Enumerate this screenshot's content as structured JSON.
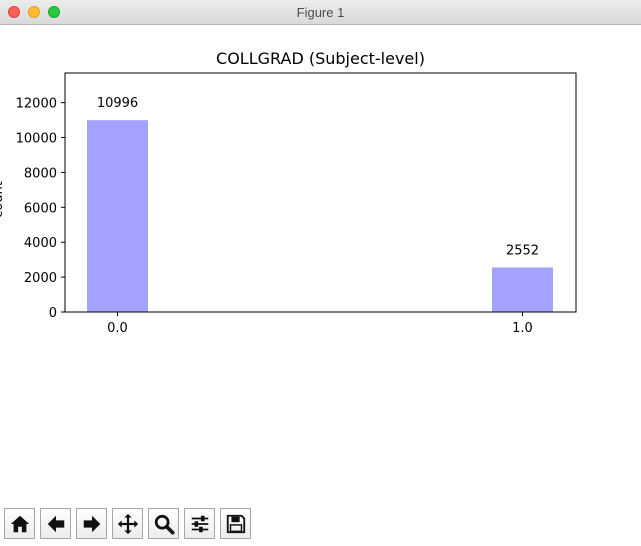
{
  "window": {
    "title": "Figure 1"
  },
  "toolbar": {
    "buttons": [
      {
        "name": "home",
        "icon": "home-icon"
      },
      {
        "name": "back",
        "icon": "arrow-left-icon"
      },
      {
        "name": "forward",
        "icon": "arrow-right-icon"
      },
      {
        "name": "pan",
        "icon": "move-icon"
      },
      {
        "name": "zoom",
        "icon": "magnifier-icon"
      },
      {
        "name": "configure-subplots",
        "icon": "sliders-icon"
      },
      {
        "name": "save",
        "icon": "floppy-disk-icon"
      }
    ]
  },
  "chart_data": {
    "type": "bar",
    "title": "COLLGRAD (Subject-level)",
    "ylabel": "count",
    "xlabel": "",
    "categories": [
      "0.0",
      "1.0"
    ],
    "values": [
      10996,
      2552
    ],
    "value_labels": [
      "10996",
      "2552"
    ],
    "yticks": [
      0,
      2000,
      4000,
      6000,
      8000,
      10000,
      12000
    ],
    "ylim": [
      0,
      13700
    ],
    "bar_color": "#a3a3ff",
    "grid": false,
    "legend": "none"
  }
}
